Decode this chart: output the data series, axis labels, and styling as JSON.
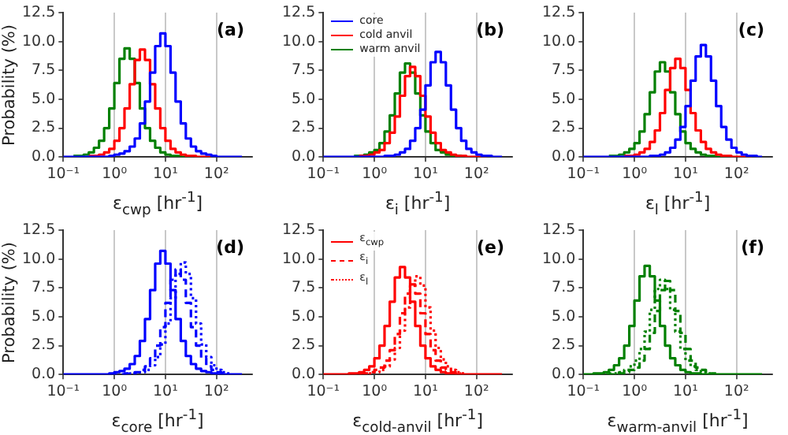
{
  "chart_data": [
    {
      "type": "step",
      "xlabel": "ε$_{cwp}$ [hr$^{-1}$]",
      "ylabel": "Probability (%)",
      "annotations": [
        "(a)"
      ],
      "log": "x",
      "grid": "x",
      "xlim": [
        0.1,
        500
      ],
      "ylim": [
        0,
        12.5
      ],
      "xticks": [
        {
          "value": 0.1,
          "label": "10⁻¹"
        },
        {
          "value": 1,
          "label": "10⁰"
        },
        {
          "value": 10,
          "label": "10¹"
        },
        {
          "value": 100,
          "label": "10²"
        }
      ],
      "yticks": [
        {
          "value": 0,
          "label": "0.0"
        },
        {
          "value": 2.5,
          "label": "2.5"
        },
        {
          "value": 5,
          "label": "5.0"
        },
        {
          "value": 7.5,
          "label": "7.5"
        },
        {
          "value": 10,
          "label": "10.0"
        },
        {
          "value": 12.5,
          "label": "12.5"
        }
      ],
      "x": [
        0.1,
        0.126,
        0.158,
        0.2,
        0.251,
        0.316,
        0.398,
        0.501,
        0.631,
        0.794,
        1,
        1.26,
        1.58,
        2,
        2.51,
        3.16,
        3.98,
        5.01,
        6.31,
        7.94,
        10,
        12.6,
        15.8,
        20,
        25.1,
        31.6,
        39.8,
        50.1,
        63.1,
        79.4,
        100,
        126,
        158,
        200,
        251,
        316
      ],
      "series": [
        {
          "color": "#0000ff",
          "values": [
            0,
            0,
            0,
            0,
            0,
            0,
            0,
            0,
            0,
            0.1,
            0.2,
            0.3,
            0.5,
            0.9,
            1.6,
            2.9,
            4.8,
            7.3,
            9.6,
            10.7,
            9.6,
            7.3,
            4.8,
            2.9,
            1.6,
            0.9,
            0.5,
            0.3,
            0.2,
            0.1,
            0,
            0,
            0,
            0,
            0,
            0
          ]
        },
        {
          "color": "#ff0000",
          "values": [
            null,
            null,
            null,
            null,
            null,
            0.1,
            0.1,
            0.2,
            0.4,
            0.7,
            1.4,
            2.5,
            4.2,
            6.3,
            8.4,
            9.3,
            8.4,
            6.3,
            4.2,
            2.5,
            1.4,
            0.7,
            0.4,
            0.2,
            0.1,
            0.1,
            0,
            0,
            0,
            0,
            null,
            null,
            null,
            null,
            null,
            null
          ]
        },
        {
          "color": "#008000",
          "values": [
            null,
            null,
            0.1,
            0.1,
            0.2,
            0.4,
            0.8,
            1.4,
            2.5,
            4.2,
            6.4,
            8.5,
            9.4,
            8.5,
            6.4,
            4.2,
            2.5,
            1.4,
            0.8,
            0.4,
            0.2,
            0.1,
            0.1,
            0,
            0,
            0,
            null,
            null,
            null,
            null,
            null,
            null,
            null,
            null,
            null,
            null
          ]
        }
      ]
    },
    {
      "type": "step",
      "xlabel": "ε$_{i}$ [hr$^{-1}$]",
      "annotations": [
        "(b)"
      ],
      "log": "x",
      "grid": "x",
      "legend": "top left",
      "xlim": [
        0.1,
        500
      ],
      "ylim": [
        0,
        12.5
      ],
      "xticks": [
        {
          "value": 0.1,
          "label": "10⁻¹"
        },
        {
          "value": 1,
          "label": "10⁰"
        },
        {
          "value": 10,
          "label": "10¹"
        },
        {
          "value": 100,
          "label": "10²"
        }
      ],
      "yticks": [
        {
          "value": 0,
          "label": "0.0"
        },
        {
          "value": 2.5,
          "label": "2.5"
        },
        {
          "value": 5,
          "label": "5.0"
        },
        {
          "value": 7.5,
          "label": "7.5"
        },
        {
          "value": 10,
          "label": "10.0"
        },
        {
          "value": 12.5,
          "label": "12.5"
        }
      ],
      "x": [
        0.1,
        0.126,
        0.158,
        0.2,
        0.251,
        0.316,
        0.398,
        0.501,
        0.631,
        0.794,
        1,
        1.26,
        1.58,
        2,
        2.51,
        3.16,
        3.98,
        5.01,
        6.31,
        7.94,
        10,
        12.6,
        15.8,
        20,
        25.1,
        31.6,
        39.8,
        50.1,
        63.1,
        79.4,
        100,
        126,
        158,
        200,
        251,
        316
      ],
      "series": [
        {
          "name": "core",
          "color": "#0000ff",
          "values": [
            0,
            0,
            0,
            0,
            0,
            0,
            0,
            0,
            0,
            0,
            0,
            0,
            0.1,
            0.1,
            0.2,
            0.4,
            0.7,
            1.4,
            2.5,
            4.1,
            6.2,
            8.2,
            9.1,
            8.2,
            6.2,
            4.1,
            2.5,
            1.4,
            0.7,
            0.4,
            0.2,
            0.1,
            0.1,
            0,
            0,
            0
          ]
        },
        {
          "name": "cold anvil",
          "color": "#ff0000",
          "values": [
            null,
            null,
            null,
            null,
            null,
            null,
            null,
            0.1,
            0.1,
            0.2,
            0.4,
            0.6,
            1.2,
            2.1,
            3.5,
            5.3,
            7.0,
            7.8,
            7.0,
            5.3,
            3.5,
            2.1,
            1.2,
            0.6,
            0.4,
            0.2,
            0.1,
            0.1,
            0,
            0,
            0,
            0,
            0,
            null,
            null,
            null
          ]
        },
        {
          "name": "warm anvil",
          "color": "#008000",
          "values": [
            null,
            null,
            null,
            null,
            null,
            null,
            0.1,
            0.1,
            0.2,
            0.4,
            0.6,
            1.2,
            2.2,
            3.6,
            5.5,
            7.3,
            8.1,
            7.3,
            5.5,
            3.6,
            2.2,
            1.2,
            0.6,
            0.4,
            0.2,
            0.1,
            0.1,
            0,
            null,
            null,
            null,
            null,
            null,
            null,
            null,
            null
          ]
        }
      ]
    },
    {
      "type": "step",
      "xlabel": "ε$_{l}$ [hr$^{-1}$]",
      "annotations": [
        "(c)"
      ],
      "log": "x",
      "grid": "x",
      "xlim": [
        0.1,
        500
      ],
      "ylim": [
        0,
        12.5
      ],
      "xticks": [
        {
          "value": 0.1,
          "label": "10⁻¹"
        },
        {
          "value": 1,
          "label": "10⁰"
        },
        {
          "value": 10,
          "label": "10¹"
        },
        {
          "value": 100,
          "label": "10²"
        }
      ],
      "yticks": [
        {
          "value": 0,
          "label": "0.0"
        },
        {
          "value": 2.5,
          "label": "2.5"
        },
        {
          "value": 5,
          "label": "5.0"
        },
        {
          "value": 7.5,
          "label": "7.5"
        },
        {
          "value": 10,
          "label": "10.0"
        },
        {
          "value": 12.5,
          "label": "12.5"
        }
      ],
      "x": [
        0.1,
        0.126,
        0.158,
        0.2,
        0.251,
        0.316,
        0.398,
        0.501,
        0.631,
        0.794,
        1,
        1.26,
        1.58,
        2,
        2.51,
        3.16,
        3.98,
        5.01,
        6.31,
        7.94,
        10,
        12.6,
        15.8,
        20,
        25.1,
        31.6,
        39.8,
        50.1,
        63.1,
        79.4,
        100,
        126,
        158,
        200,
        251,
        316
      ],
      "series": [
        {
          "color": "#0000ff",
          "values": [
            0,
            0,
            0,
            0,
            0,
            0,
            0,
            0,
            0,
            0,
            0,
            0,
            0,
            0.1,
            0.1,
            0.2,
            0.4,
            0.8,
            1.5,
            2.6,
            4.4,
            6.6,
            8.7,
            9.7,
            8.7,
            6.6,
            4.4,
            2.6,
            1.5,
            0.8,
            0.4,
            0.2,
            0.1,
            0.1,
            0,
            0
          ]
        },
        {
          "color": "#ff0000",
          "values": [
            null,
            null,
            null,
            null,
            null,
            null,
            null,
            null,
            0.1,
            0.1,
            0.2,
            0.4,
            0.7,
            1.3,
            2.3,
            3.8,
            5.8,
            7.7,
            8.5,
            7.7,
            5.8,
            3.8,
            2.3,
            1.3,
            0.7,
            0.4,
            0.2,
            0.1,
            0.1,
            0,
            0,
            0,
            0,
            0,
            null,
            null
          ]
        },
        {
          "color": "#008000",
          "values": [
            null,
            null,
            null,
            null,
            null,
            0.1,
            0.1,
            0.2,
            0.4,
            0.7,
            1.2,
            2.2,
            3.7,
            5.6,
            7.4,
            8.2,
            7.4,
            5.6,
            3.7,
            2.2,
            1.2,
            0.7,
            0.4,
            0.2,
            0.1,
            0.1,
            0,
            0,
            0,
            null,
            null,
            null,
            null,
            null,
            null,
            null
          ]
        }
      ]
    },
    {
      "type": "step",
      "xlabel": "ε$_{core}$ [hr$^{-1}$]",
      "ylabel": "Probability (%)",
      "annotations": [
        "(d)"
      ],
      "log": "x",
      "grid": "x",
      "xlim": [
        0.1,
        500
      ],
      "ylim": [
        0,
        12.5
      ],
      "xticks": [
        {
          "value": 0.1,
          "label": "10⁻¹"
        },
        {
          "value": 1,
          "label": "10⁰"
        },
        {
          "value": 10,
          "label": "10¹"
        },
        {
          "value": 100,
          "label": "10²"
        }
      ],
      "yticks": [
        {
          "value": 0,
          "label": "0.0"
        },
        {
          "value": 2.5,
          "label": "2.5"
        },
        {
          "value": 5,
          "label": "5.0"
        },
        {
          "value": 7.5,
          "label": "7.5"
        },
        {
          "value": 10,
          "label": "10.0"
        },
        {
          "value": 12.5,
          "label": "12.5"
        }
      ],
      "x": [
        0.1,
        0.126,
        0.158,
        0.2,
        0.251,
        0.316,
        0.398,
        0.501,
        0.631,
        0.794,
        1,
        1.26,
        1.58,
        2,
        2.51,
        3.16,
        3.98,
        5.01,
        6.31,
        7.94,
        10,
        12.6,
        15.8,
        20,
        25.1,
        31.6,
        39.8,
        50.1,
        63.1,
        79.4,
        100,
        126,
        158,
        200,
        251,
        316
      ],
      "series": [
        {
          "color": "#0000ff",
          "line_style": "solid",
          "values": [
            0,
            0,
            0,
            0,
            0,
            0,
            0,
            0,
            0,
            0.1,
            0.2,
            0.3,
            0.5,
            0.9,
            1.6,
            2.9,
            4.8,
            7.3,
            9.6,
            10.7,
            9.6,
            7.3,
            4.8,
            2.9,
            1.6,
            0.9,
            0.5,
            0.3,
            0.2,
            0.1,
            0,
            0,
            0,
            0,
            0,
            0
          ]
        },
        {
          "color": "#0000ff",
          "line_style": "dashed",
          "values": [
            null,
            null,
            null,
            null,
            null,
            null,
            null,
            null,
            null,
            0,
            0,
            0,
            0.1,
            0.1,
            0.2,
            0.4,
            0.7,
            1.4,
            2.5,
            4.1,
            6.2,
            8.2,
            9.1,
            8.2,
            6.2,
            4.1,
            2.5,
            1.4,
            0.7,
            0.4,
            0.2,
            0.1,
            0.1,
            null,
            null,
            null
          ]
        },
        {
          "color": "#0000ff",
          "line_style": "dotted",
          "values": [
            null,
            null,
            null,
            null,
            null,
            null,
            null,
            null,
            null,
            null,
            null,
            null,
            0,
            0.1,
            0.1,
            0.2,
            0.4,
            0.8,
            1.5,
            2.6,
            4.4,
            6.6,
            8.7,
            9.7,
            8.7,
            6.6,
            4.4,
            2.6,
            1.5,
            0.8,
            0.4,
            0.2,
            0.1,
            0.1,
            null,
            null
          ]
        }
      ]
    },
    {
      "type": "step",
      "xlabel": "ε$_{cold-anvil}$ [hr$^{-1}$]",
      "annotations": [
        "(e)"
      ],
      "log": "x",
      "grid": "x",
      "legend": "top left",
      "xlim": [
        0.1,
        500
      ],
      "ylim": [
        0,
        12.5
      ],
      "xticks": [
        {
          "value": 0.1,
          "label": "10⁻¹"
        },
        {
          "value": 1,
          "label": "10⁰"
        },
        {
          "value": 10,
          "label": "10¹"
        },
        {
          "value": 100,
          "label": "10²"
        }
      ],
      "yticks": [
        {
          "value": 0,
          "label": "0.0"
        },
        {
          "value": 2.5,
          "label": "2.5"
        },
        {
          "value": 5,
          "label": "5.0"
        },
        {
          "value": 7.5,
          "label": "7.5"
        },
        {
          "value": 10,
          "label": "10.0"
        },
        {
          "value": 12.5,
          "label": "12.5"
        }
      ],
      "x": [
        0.1,
        0.126,
        0.158,
        0.2,
        0.251,
        0.316,
        0.398,
        0.501,
        0.631,
        0.794,
        1,
        1.26,
        1.58,
        2,
        2.51,
        3.16,
        3.98,
        5.01,
        6.31,
        7.94,
        10,
        12.6,
        15.8,
        20,
        25.1,
        31.6,
        39.8,
        50.1,
        63.1,
        79.4,
        100,
        126,
        158,
        200,
        251,
        316
      ],
      "series": [
        {
          "name": "ε$_{cwp}$",
          "color": "#ff0000",
          "line_style": "solid",
          "values": [
            0,
            0,
            0,
            0,
            0,
            0.1,
            0.1,
            0.2,
            0.4,
            0.7,
            1.4,
            2.5,
            4.2,
            6.3,
            8.4,
            9.3,
            8.4,
            6.3,
            4.2,
            2.5,
            1.4,
            0.7,
            0.4,
            0.2,
            0.1,
            0.1,
            0,
            0,
            0,
            0,
            0,
            0,
            0,
            0,
            0,
            0
          ]
        },
        {
          "name": "ε$_{i}$",
          "color": "#ff0000",
          "line_style": "dashed",
          "values": [
            null,
            null,
            null,
            null,
            null,
            0,
            0,
            0.1,
            0.1,
            0.2,
            0.4,
            0.6,
            1.2,
            2.1,
            3.5,
            5.3,
            7.0,
            7.8,
            7.0,
            5.3,
            3.5,
            2.1,
            1.2,
            0.6,
            0.4,
            0.2,
            0.1,
            0.1,
            null,
            null,
            null,
            null,
            null,
            null,
            null,
            null
          ]
        },
        {
          "name": "ε$_{l}$",
          "color": "#ff0000",
          "line_style": "dotted",
          "values": [
            null,
            null,
            null,
            null,
            null,
            null,
            null,
            0,
            0.1,
            0.1,
            0.2,
            0.4,
            0.7,
            1.3,
            2.3,
            3.8,
            5.8,
            7.7,
            8.5,
            7.7,
            5.8,
            3.8,
            2.3,
            1.3,
            0.7,
            0.4,
            0.2,
            0.1,
            0.1,
            null,
            null,
            null,
            null,
            null,
            null,
            null
          ]
        }
      ]
    },
    {
      "type": "step",
      "xlabel": "ε$_{warm-anvil}$ [hr$^{-1}$]",
      "annotations": [
        "(f)"
      ],
      "log": "x",
      "grid": "x",
      "xlim": [
        0.1,
        500
      ],
      "ylim": [
        0,
        12.5
      ],
      "xticks": [
        {
          "value": 0.1,
          "label": "10⁻¹"
        },
        {
          "value": 1,
          "label": "10⁰"
        },
        {
          "value": 10,
          "label": "10¹"
        },
        {
          "value": 100,
          "label": "10²"
        }
      ],
      "yticks": [
        {
          "value": 0,
          "label": "0.0"
        },
        {
          "value": 2.5,
          "label": "2.5"
        },
        {
          "value": 5,
          "label": "5.0"
        },
        {
          "value": 7.5,
          "label": "7.5"
        },
        {
          "value": 10,
          "label": "10.0"
        },
        {
          "value": 12.5,
          "label": "12.5"
        }
      ],
      "x": [
        0.1,
        0.126,
        0.158,
        0.2,
        0.251,
        0.316,
        0.398,
        0.501,
        0.631,
        0.794,
        1,
        1.26,
        1.58,
        2,
        2.51,
        3.16,
        3.98,
        5.01,
        6.31,
        7.94,
        10,
        12.6,
        15.8,
        20,
        25.1,
        31.6,
        39.8,
        50.1,
        63.1,
        79.4,
        100,
        126,
        158,
        200,
        251,
        316
      ],
      "series": [
        {
          "color": "#008000",
          "line_style": "solid",
          "values": [
            0,
            0,
            0.1,
            0.1,
            0.2,
            0.4,
            0.8,
            1.4,
            2.5,
            4.2,
            6.4,
            8.5,
            9.4,
            8.5,
            6.4,
            4.2,
            2.5,
            1.4,
            0.8,
            0.4,
            0.2,
            0.1,
            0.1,
            0,
            0,
            0,
            0,
            0,
            0,
            0,
            0,
            0,
            0,
            0,
            0,
            0
          ]
        },
        {
          "color": "#008000",
          "line_style": "dashed",
          "values": [
            null,
            null,
            0,
            0,
            0,
            0,
            0.1,
            0.1,
            0.2,
            0.4,
            0.6,
            1.2,
            2.2,
            3.6,
            5.5,
            7.3,
            8.1,
            7.3,
            5.5,
            3.6,
            2.2,
            1.2,
            0.6,
            0.4,
            0.2,
            0.1,
            0.1,
            null,
            null,
            null,
            null,
            null,
            null,
            null,
            null,
            null
          ]
        },
        {
          "color": "#008000",
          "line_style": "dotted",
          "values": [
            null,
            null,
            null,
            null,
            null,
            0.1,
            0.1,
            0.2,
            0.4,
            0.7,
            1.2,
            2.2,
            3.7,
            5.6,
            7.4,
            8.2,
            7.4,
            5.6,
            3.7,
            2.2,
            1.2,
            0.7,
            0.4,
            0.2,
            0.1,
            0.1,
            null,
            null,
            null,
            null,
            null,
            null,
            null,
            null,
            null,
            null
          ]
        }
      ]
    }
  ]
}
